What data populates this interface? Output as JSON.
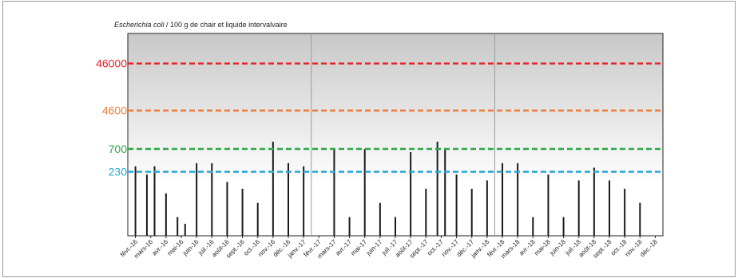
{
  "chart_data": {
    "type": "bar",
    "ylabel_species": "Escherichia coli",
    "ylabel_rest": " / 100 g de chair et liquide intervalvaire",
    "categories": [
      "févr.-16",
      "mars-16",
      "avr.-16",
      "mai-16",
      "juin-16",
      "juil.-16",
      "août-16",
      "sept.-16",
      "oct.-16",
      "nov.-16",
      "déc.-16",
      "janv.-17",
      "févr.-17",
      "mars-17",
      "avr.-17",
      "mai-17",
      "juin-17",
      "juil.-17",
      "août-17",
      "sept.-17",
      "oct.-17",
      "nov.-17",
      "déc.-17",
      "janv.-18",
      "févr.-18",
      "mars-18",
      "avr.-18",
      "mai-18",
      "juin-18",
      "juil.-18",
      "août-18",
      "sept.-18",
      "oct.-18",
      "nov.-18",
      "déc.-18"
    ],
    "series": [
      {
        "values": [
          {
            "x": "févr.-16",
            "y": 300
          },
          {
            "x": "mars-16",
            "y": 200
          },
          {
            "x": "mars-16",
            "y": 300
          },
          {
            "x": "avr.-16",
            "y": 80
          },
          {
            "x": "mai-16",
            "y": 25
          },
          {
            "x": "mai-16",
            "y": 18
          },
          {
            "x": "juin-16",
            "y": 350
          },
          {
            "x": "juil.-16",
            "y": 350
          },
          {
            "x": "août-16",
            "y": 140
          },
          {
            "x": "sept.-16",
            "y": 100
          },
          {
            "x": "oct.-16",
            "y": 50
          },
          {
            "x": "nov.-16",
            "y": 1000
          },
          {
            "x": "déc.-16",
            "y": 350
          },
          {
            "x": "janv.-17",
            "y": 300
          },
          {
            "x": "mars-17",
            "y": 700
          },
          {
            "x": "avr.-17",
            "y": 25
          },
          {
            "x": "mai-17",
            "y": 700
          },
          {
            "x": "juin-17",
            "y": 50
          },
          {
            "x": "juil.-17",
            "y": 25
          },
          {
            "x": "août-17",
            "y": 600
          },
          {
            "x": "sept.-17",
            "y": 100
          },
          {
            "x": "oct.-17",
            "y": 1000
          },
          {
            "x": "oct.-17",
            "y": 700
          },
          {
            "x": "nov.-17",
            "y": 200
          },
          {
            "x": "déc.-17",
            "y": 100
          },
          {
            "x": "janv.-18",
            "y": 150
          },
          {
            "x": "févr.-18",
            "y": 350
          },
          {
            "x": "mars-18",
            "y": 350
          },
          {
            "x": "avr.-18",
            "y": 25
          },
          {
            "x": "mai-18",
            "y": 200
          },
          {
            "x": "juin-18",
            "y": 25
          },
          {
            "x": "juil.-18",
            "y": 150
          },
          {
            "x": "août-18",
            "y": 280
          },
          {
            "x": "sept.-18",
            "y": 150
          },
          {
            "x": "oct.-18",
            "y": 100
          },
          {
            "x": "nov.-18",
            "y": 50
          }
        ]
      }
    ],
    "yscale": "log",
    "ylim": [
      10,
      200000
    ],
    "thresholds": [
      {
        "label": "46000",
        "value": 46000,
        "color": "#e8212b"
      },
      {
        "label": "4600",
        "value": 4600,
        "color": "#ec7d3c"
      },
      {
        "label": "700",
        "value": 700,
        "color": "#29a844"
      },
      {
        "label": "230",
        "value": 230,
        "color": "#2aa8d8"
      }
    ],
    "year_separators": [
      "févr.-17",
      "févr.-18"
    ],
    "grid": false,
    "legend": "none",
    "colors": {
      "bars": "#1a1a1a",
      "plot_gradient_top": "#c8c8c8",
      "plot_gradient_bottom": "#ffffff",
      "separator": "#9a9a9a"
    }
  }
}
